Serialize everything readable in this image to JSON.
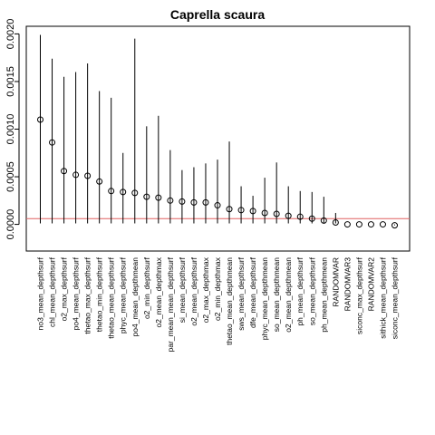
{
  "chart_data": {
    "type": "scatter",
    "title": "Caprella scaura",
    "xlabel": "",
    "ylabel": "",
    "ylim": [
      -0.00028,
      0.00208
    ],
    "yticks": [
      0.0,
      0.0005,
      0.001,
      0.0015,
      0.002
    ],
    "ytick_labels": [
      "0.0000",
      "0.0005",
      "0.0010",
      "0.0015",
      "0.0020"
    ],
    "reference_line": 6e-05,
    "reference_line_color": "#e06060",
    "grid": false,
    "categories": [
      "no3_mean_depthsurf",
      "chl_mean_depthsurf",
      "o2_max_depthsurf",
      "po4_mean_depthsurf",
      "thetao_max_depthsurf",
      "thetao_min_depthsurf",
      "thetao_mean_depthsurf",
      "phyc_mean_depthsurf",
      "po4_mean_depthmean",
      "o2_min_depthsurf",
      "o2_mean_depthmax",
      "par_mean_mean_depthsurf",
      "si_mean_depthsurf",
      "o2_mean_depthsurf",
      "o2_max_depthmax",
      "o2_min_depthmax",
      "thetao_mean_depthmean",
      "sws_mean_depthsurf",
      "dfe_mean_depthsurf",
      "phyc_mean_depthmean",
      "so_mean_depthmean",
      "o2_mean_depthmean",
      "ph_mean_depthsurf",
      "so_mean_depthsurf",
      "ph_mean_depthmean",
      "RANDOMVAR",
      "RANDOMVAR3",
      "siconc_max_depthsurf",
      "RANDOMVAR2",
      "sithick_mean_depthsurf",
      "siconc_mean_depthsurf"
    ],
    "values": [
      0.0011,
      0.00086,
      0.00056,
      0.00052,
      0.00051,
      0.00045,
      0.00035,
      0.00034,
      0.00033,
      0.00029,
      0.00028,
      0.00025,
      0.00024,
      0.00023,
      0.00023,
      0.0002,
      0.00016,
      0.00015,
      0.00014,
      0.00012,
      0.00011,
      9e-05,
      8e-05,
      6e-05,
      4e-05,
      2e-05,
      0.0,
      0.0,
      0.0,
      0.0,
      -1e-05
    ],
    "upper": [
      0.00199,
      0.00174,
      0.00155,
      0.0016,
      0.00169,
      0.0014,
      0.00133,
      0.00075,
      0.00195,
      0.00103,
      0.00114,
      0.00078,
      0.00057,
      0.0006,
      0.00064,
      0.00068,
      0.00087,
      0.0004,
      0.0003,
      0.00049,
      0.00065,
      0.0004,
      0.00035,
      0.00034,
      0.00029,
      0.00012,
      0.0,
      0.0,
      0.0,
      0.0,
      0.0
    ],
    "lower": [
      1e-05,
      1e-05,
      1e-05,
      1e-05,
      1e-05,
      1e-05,
      1e-05,
      1e-05,
      1e-05,
      1e-05,
      1e-05,
      1e-05,
      1e-05,
      1e-05,
      1e-05,
      1e-05,
      1e-05,
      1e-05,
      1e-05,
      1e-05,
      1e-05,
      1e-05,
      1e-05,
      1e-05,
      1e-05,
      1e-05,
      0.0,
      0.0,
      0.0,
      0.0,
      -1e-05
    ]
  }
}
